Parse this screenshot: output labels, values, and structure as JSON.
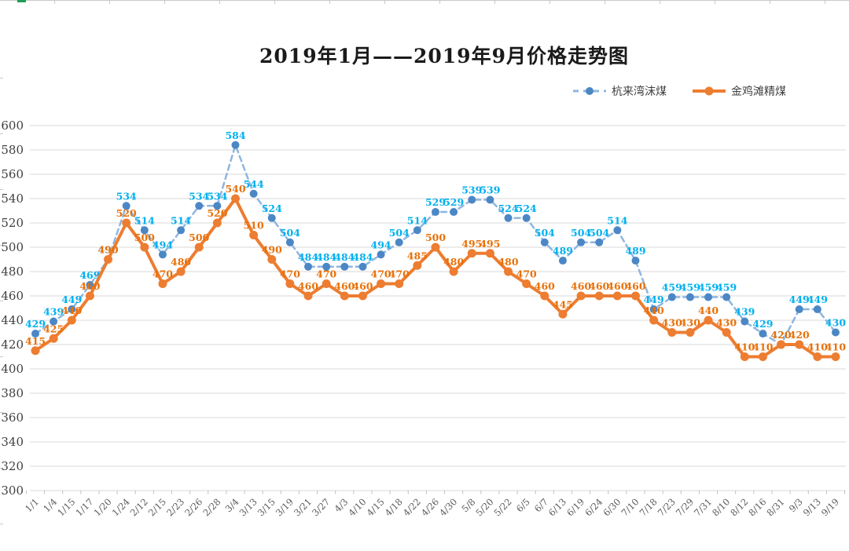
{
  "title": "2019年1月——2019年9月价格走势图",
  "legend": {
    "items": [
      {
        "label": "杭来湾沫煤"
      },
      {
        "label": "金鸡滩精煤"
      }
    ]
  },
  "chart_data": {
    "type": "line",
    "title": "2019年1月——2019年9月价格走势图",
    "categories": [
      "1/1",
      "1/4",
      "1/15",
      "1/17",
      "1/20",
      "1/24",
      "2/12",
      "2/15",
      "2/23",
      "2/26",
      "2/28",
      "3/4",
      "3/13",
      "3/15",
      "3/19",
      "3/21",
      "3/27",
      "4/3",
      "4/10",
      "4/15",
      "4/18",
      "4/22",
      "4/26",
      "4/30",
      "5/8",
      "5/20",
      "5/22",
      "6/5",
      "6/7",
      "6/13",
      "6/19",
      "6/24",
      "6/30",
      "7/10",
      "7/18",
      "7/23",
      "7/29",
      "7/31",
      "8/10",
      "8/12",
      "8/16",
      "8/31",
      "9/3",
      "9/13",
      "9/19"
    ],
    "series": [
      {
        "name": "杭来湾沫煤",
        "style": "dashed",
        "line_color": "#8fb6df",
        "marker_color": "#4c87c5",
        "label_color": "#00b0f0",
        "values": [
          429,
          439,
          449,
          469,
          490,
          534,
          514,
          494,
          514,
          534,
          534,
          584,
          544,
          524,
          504,
          484,
          484,
          484,
          484,
          494,
          504,
          514,
          529,
          529,
          539,
          539,
          524,
          524,
          504,
          489,
          504,
          504,
          514,
          489,
          449,
          459,
          459,
          459,
          459,
          439,
          429,
          420,
          449,
          449,
          430
        ]
      },
      {
        "name": "金鸡滩精煤",
        "style": "solid",
        "line_color": "#ed7d31",
        "marker_color": "#ed7d31",
        "label_color": "#e8710a",
        "values": [
          415,
          425,
          440,
          460,
          490,
          520,
          500,
          470,
          480,
          500,
          520,
          540,
          510,
          490,
          470,
          460,
          470,
          460,
          460,
          470,
          470,
          485,
          500,
          480,
          495,
          495,
          480,
          470,
          460,
          445,
          460,
          460,
          460,
          460,
          440,
          430,
          430,
          440,
          430,
          410,
          410,
          420,
          420,
          410,
          410
        ]
      }
    ],
    "ylim": [
      300,
      600
    ],
    "y_ticks": [
      300,
      320,
      340,
      360,
      380,
      400,
      420,
      440,
      460,
      480,
      500,
      520,
      540,
      560,
      580,
      600
    ],
    "grid": true,
    "grid_color": "#d9d9d9",
    "axis_label_color": "#595959",
    "y_label_color": "#3f3f3f",
    "legend_position": "top-right",
    "data_labels": true
  }
}
